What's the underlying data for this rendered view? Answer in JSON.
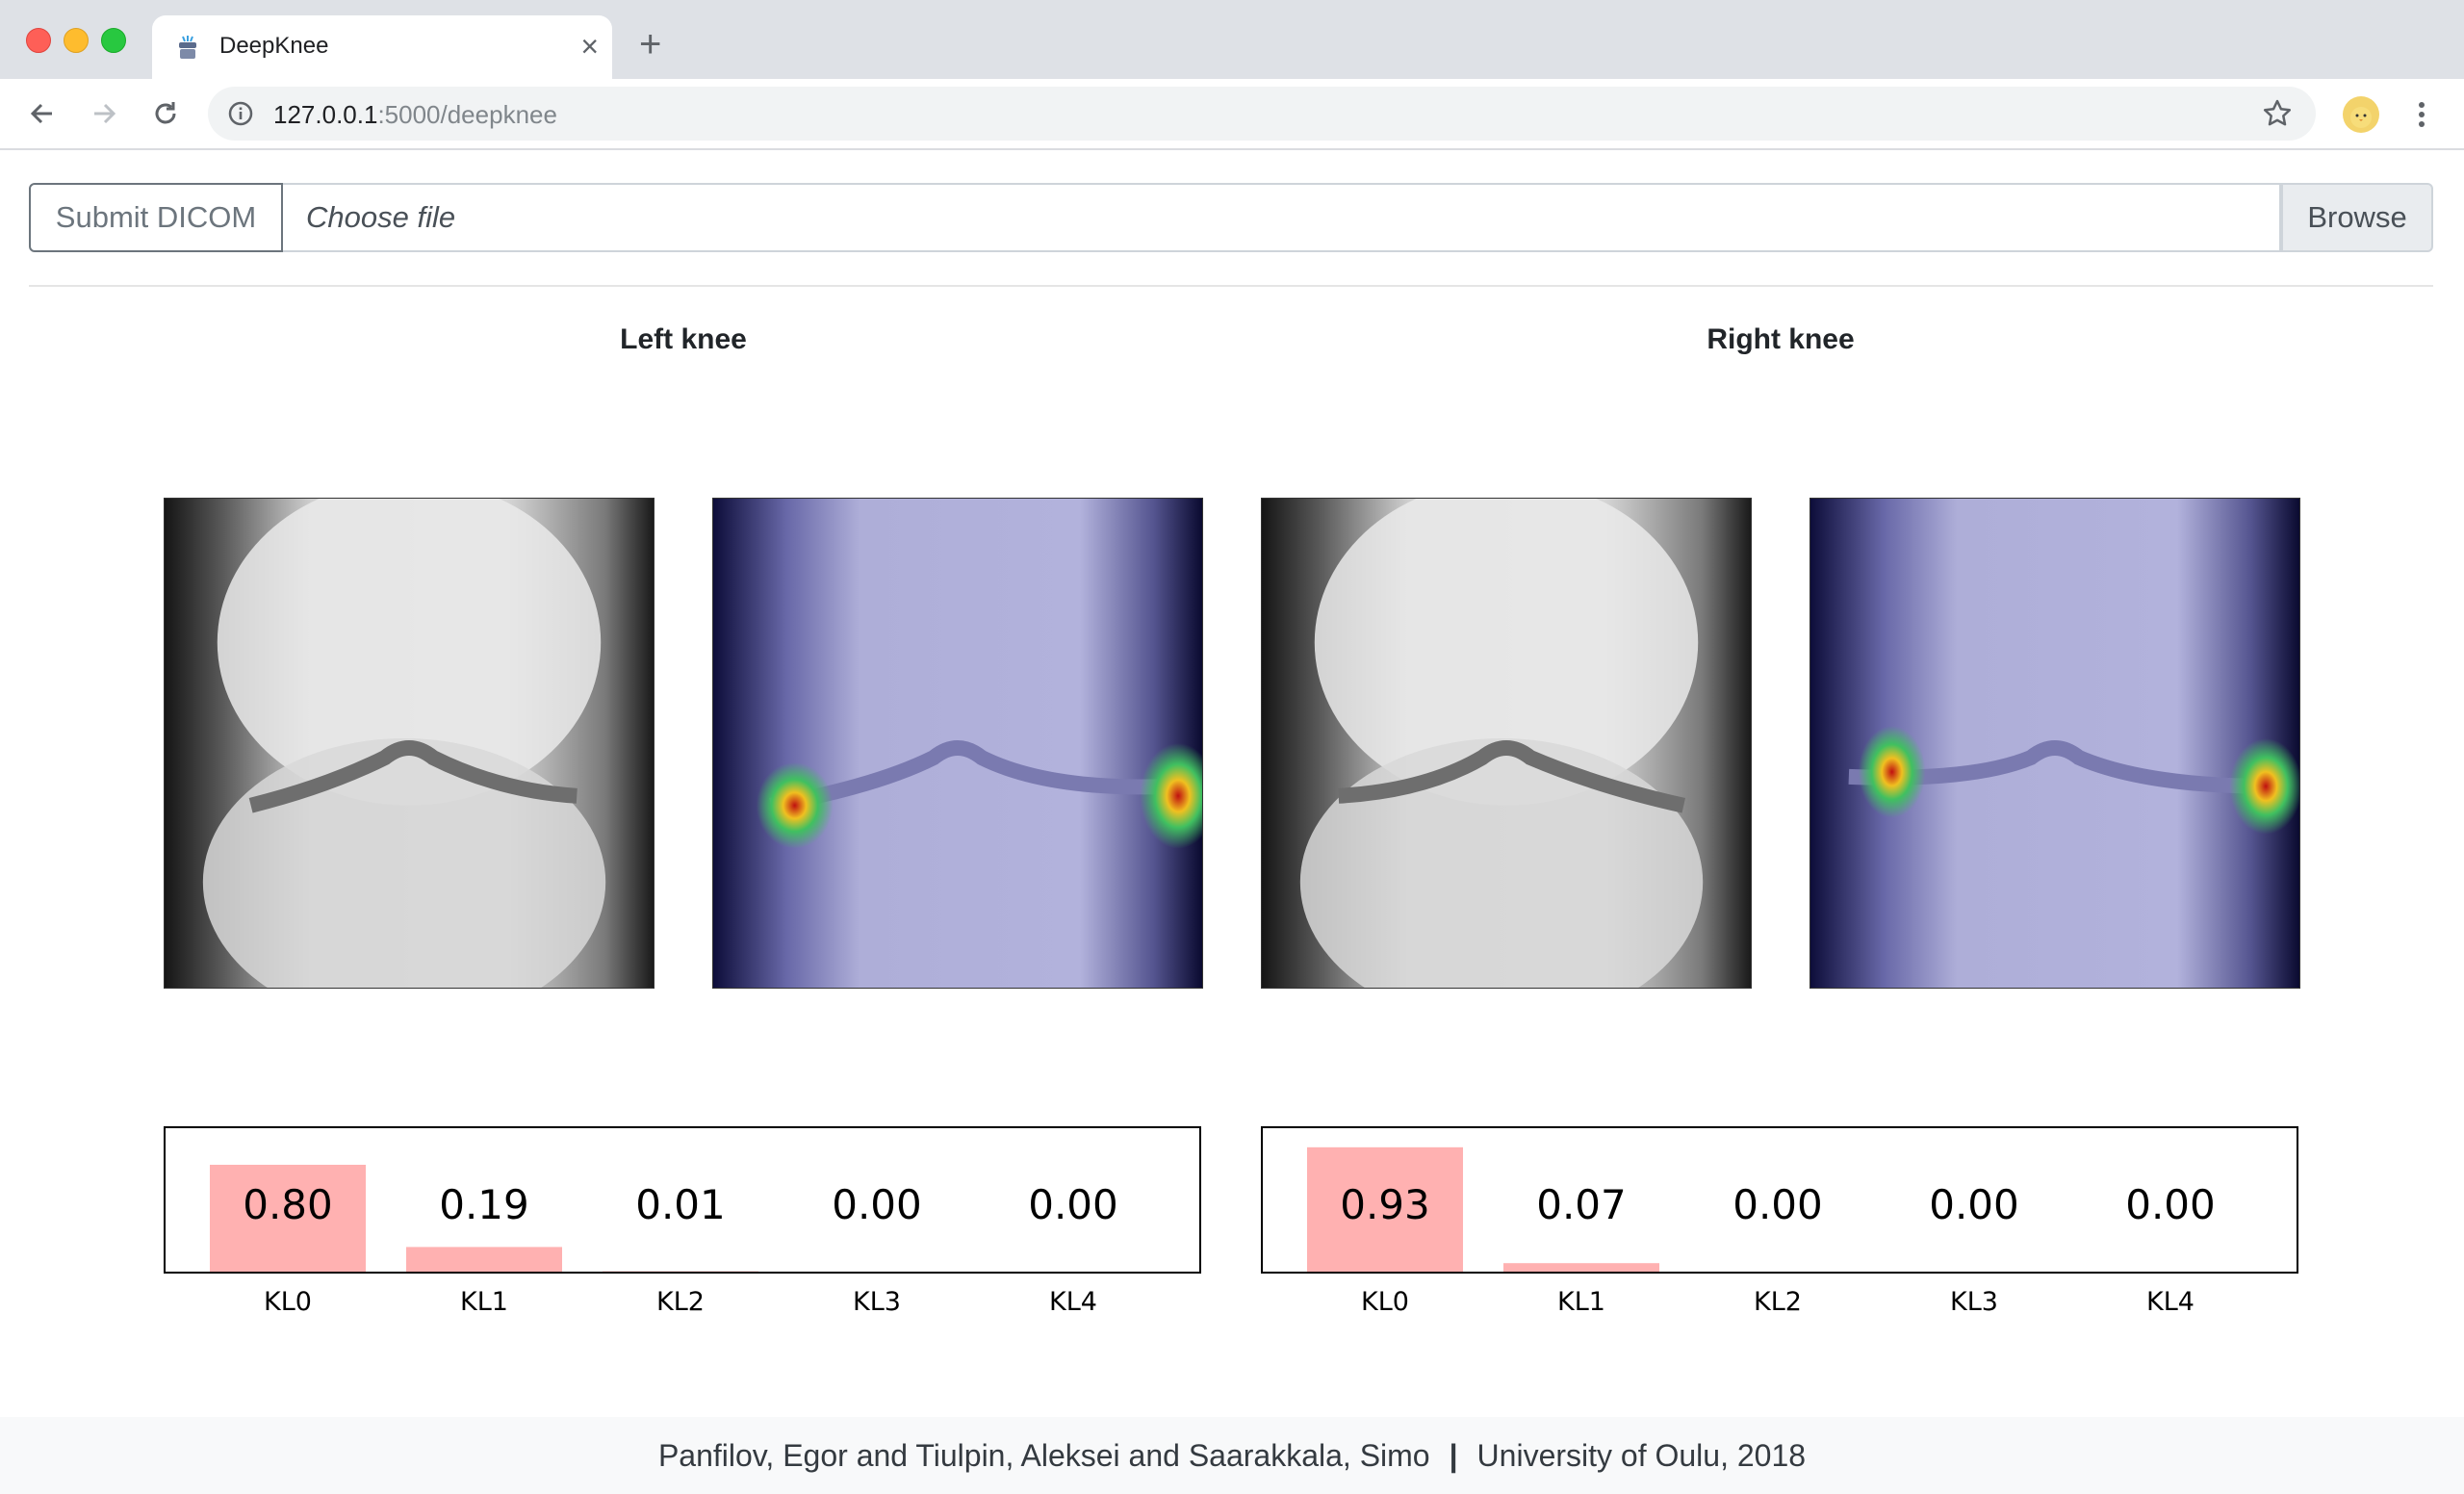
{
  "browser": {
    "tab_title": "DeepKnee",
    "url_host": "127.0.0.1",
    "url_path": ":5000/deepknee"
  },
  "upload": {
    "submit_label": "Submit DICOM",
    "file_placeholder": "Choose file",
    "browse_label": "Browse"
  },
  "knees": {
    "left_title": "Left knee",
    "right_title": "Right knee"
  },
  "chart_data": [
    {
      "type": "bar",
      "categories": [
        "KL0",
        "KL1",
        "KL2",
        "KL3",
        "KL4"
      ],
      "values": [
        0.8,
        0.19,
        0.01,
        0.0,
        0.0
      ],
      "labels": [
        "0.80",
        "0.19",
        "0.01",
        "0.00",
        "0.00"
      ],
      "ylim": [
        0,
        1
      ],
      "bar_color": "#ffb1b1"
    },
    {
      "type": "bar",
      "categories": [
        "KL0",
        "KL1",
        "KL2",
        "KL3",
        "KL4"
      ],
      "values": [
        0.93,
        0.07,
        0.0,
        0.0,
        0.0
      ],
      "labels": [
        "0.93",
        "0.07",
        "0.00",
        "0.00",
        "0.00"
      ],
      "ylim": [
        0,
        1
      ],
      "bar_color": "#ffb1b1"
    }
  ],
  "footer": {
    "authors": "Panfilov, Egor and Tiulpin, Aleksei and Saarakkala, Simo",
    "separator": "|",
    "affiliation": "University of Oulu, 2018"
  }
}
